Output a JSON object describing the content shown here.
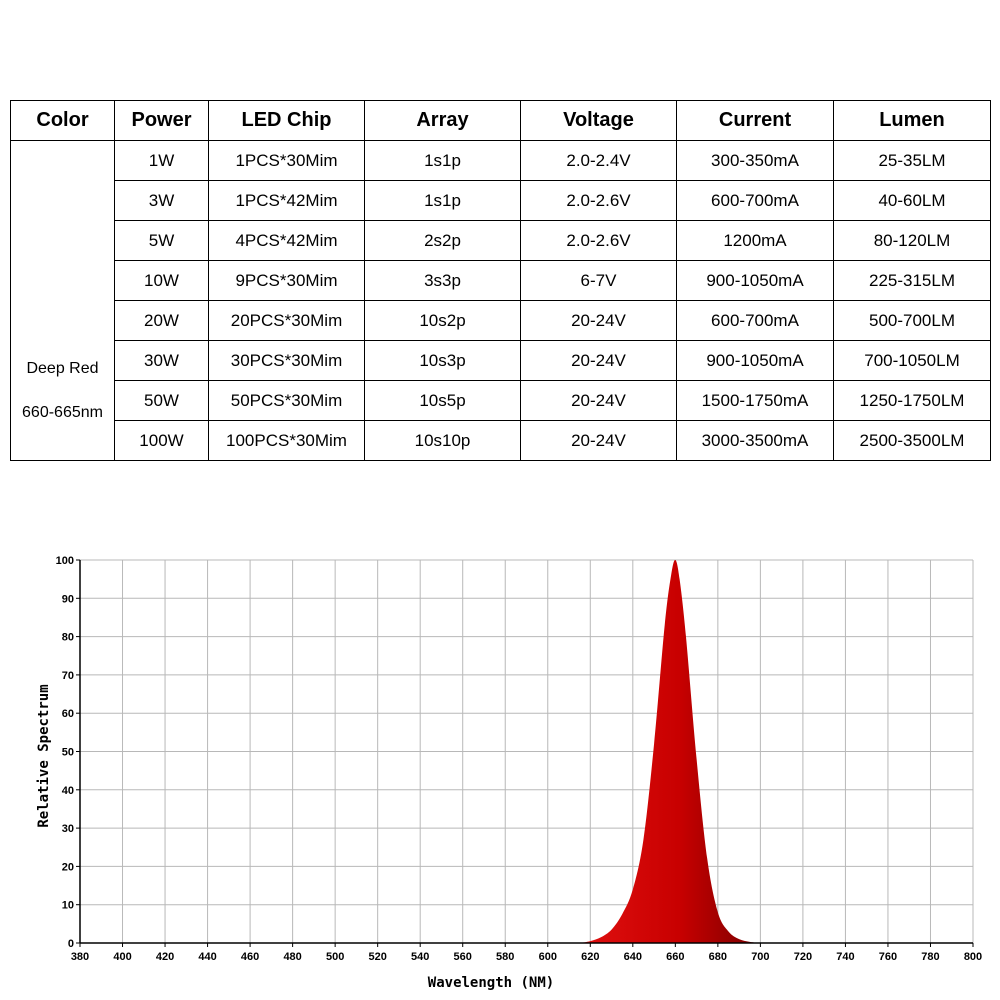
{
  "table": {
    "headers": [
      "Color",
      "Power",
      "LED Chip",
      "Array",
      "Voltage",
      "Current",
      "Lumen"
    ],
    "color_name": "Deep Red",
    "color_wavelength": "660-665nm",
    "rows": [
      [
        "1W",
        "1PCS*30Mim",
        "1s1p",
        "2.0-2.4V",
        "300-350mA",
        "25-35LM"
      ],
      [
        "3W",
        "1PCS*42Mim",
        "1s1p",
        "2.0-2.6V",
        "600-700mA",
        "40-60LM"
      ],
      [
        "5W",
        "4PCS*42Mim",
        "2s2p",
        "2.0-2.6V",
        "1200mA",
        "80-120LM"
      ],
      [
        "10W",
        "9PCS*30Mim",
        "3s3p",
        "6-7V",
        "900-1050mA",
        "225-315LM"
      ],
      [
        "20W",
        "20PCS*30Mim",
        "10s2p",
        "20-24V",
        "600-700mA",
        "500-700LM"
      ],
      [
        "30W",
        "30PCS*30Mim",
        "10s3p",
        "20-24V",
        "900-1050mA",
        "700-1050LM"
      ],
      [
        "50W",
        "50PCS*30Mim",
        "10s5p",
        "20-24V",
        "1500-1750mA",
        "1250-1750LM"
      ],
      [
        "100W",
        "100PCS*30Mim",
        "10s10p",
        "20-24V",
        "3000-3500mA",
        "2500-3500LM"
      ]
    ]
  },
  "chart_data": {
    "type": "area",
    "xlabel": "Wavelength (NM)",
    "ylabel": "Relative Spectrum",
    "xlim": [
      380,
      800
    ],
    "ylim": [
      0,
      100
    ],
    "x_ticks": [
      380,
      400,
      420,
      440,
      460,
      480,
      500,
      520,
      540,
      560,
      580,
      600,
      620,
      640,
      660,
      680,
      700,
      720,
      740,
      760,
      780,
      800
    ],
    "y_ticks": [
      0,
      10,
      20,
      30,
      40,
      50,
      60,
      70,
      80,
      90,
      100
    ],
    "grid": true,
    "fill_color": "#d40000",
    "series": [
      {
        "x": [
          615,
          620,
          625,
          630,
          635,
          640,
          645,
          650,
          655,
          658,
          660,
          662,
          665,
          670,
          675,
          680,
          685,
          690,
          695,
          700
        ],
        "y": [
          0,
          0.5,
          1.5,
          3.5,
          7.5,
          14,
          27,
          52,
          83,
          96,
          100,
          95,
          80,
          48,
          22,
          8,
          3,
          1,
          0.3,
          0
        ]
      }
    ]
  }
}
